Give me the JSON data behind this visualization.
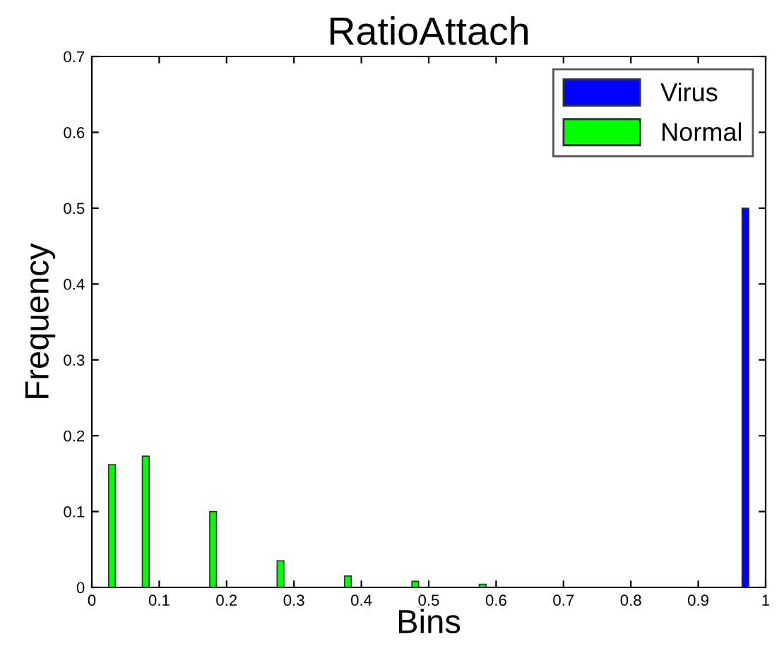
{
  "chart_data": {
    "type": "bar",
    "title": "RatioAttach",
    "xlabel": "Bins",
    "ylabel": "Frequency",
    "series": [
      {
        "name": "Virus",
        "color": "#0000ff",
        "x": [
          0.97
        ],
        "values": [
          0.5
        ]
      },
      {
        "name": "Normal",
        "color": "#00ff00",
        "x": [
          0.03,
          0.08,
          0.18,
          0.28,
          0.38,
          0.48,
          0.58
        ],
        "values": [
          0.162,
          0.173,
          0.1,
          0.035,
          0.015,
          0.008,
          0.004
        ]
      }
    ],
    "xlim": [
      0,
      1
    ],
    "ylim": [
      0,
      0.7
    ],
    "xticks": [
      0,
      0.1,
      0.2,
      0.3,
      0.4,
      0.5,
      0.6,
      0.7,
      0.8,
      0.9,
      1
    ],
    "yticks": [
      0,
      0.1,
      0.2,
      0.3,
      0.4,
      0.5,
      0.6,
      0.7
    ],
    "grid": false,
    "legend": "top right"
  }
}
